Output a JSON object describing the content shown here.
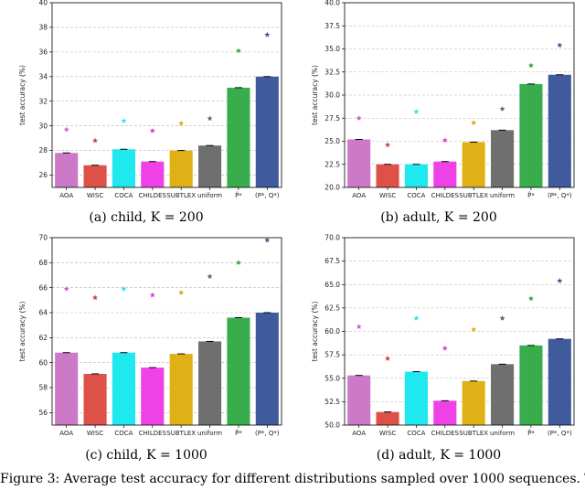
{
  "categories": [
    "AOA",
    "WISC",
    "COCA",
    "CHILDES",
    "SUBTLEX",
    "uniform",
    "P̂*",
    "(P*, Q*)"
  ],
  "colors": {
    "bars": [
      "#cc79c7",
      "#dd5149",
      "#1fe8ef",
      "#ef42e6",
      "#dfb117",
      "#6f6f6f",
      "#39ad4b",
      "#3f5b9c"
    ],
    "stars": [
      "#c761c4",
      "#cf3d3d",
      "#2ee4ef",
      "#dc36dc",
      "#d8ab16",
      "#666666",
      "#2ea844",
      "#3e5797"
    ]
  },
  "figure_caption": "Figure 3: Average test accuracy for different distributions sampled over 1000 sequences. The error",
  "chart_data": [
    {
      "type": "bar",
      "caption": "(a) child, K = 200",
      "ylabel": "test accuracy (%)",
      "ylim": [
        25,
        40
      ],
      "yticks": [
        "26",
        "28",
        "30",
        "32",
        "34",
        "36",
        "38",
        "40"
      ],
      "ytick_values": [
        26,
        28,
        30,
        32,
        34,
        36,
        38,
        40
      ],
      "grid": true,
      "categories": [
        "AOA",
        "WISC",
        "COCA",
        "CHILDES",
        "SUBTLEX",
        "uniform",
        "P̂*",
        "(P*, Q*)"
      ],
      "series": [
        {
          "values": [
            27.8,
            26.8,
            28.1,
            27.1,
            28.0,
            28.4,
            33.1,
            34.0
          ]
        },
        {
          "values": [
            29.7,
            28.8,
            30.4,
            29.6,
            30.2,
            30.6,
            36.1,
            37.4
          ]
        }
      ]
    },
    {
      "type": "bar",
      "caption": "(b) adult, K = 200",
      "ylabel": "test accuracy (%)",
      "ylim": [
        20,
        40
      ],
      "yticks": [
        "20.0",
        "22.5",
        "25.0",
        "27.5",
        "30.0",
        "32.5",
        "35.0",
        "37.5",
        "40.0"
      ],
      "ytick_values": [
        20.0,
        22.5,
        25.0,
        27.5,
        30.0,
        32.5,
        35.0,
        37.5,
        40.0
      ],
      "grid": true,
      "categories": [
        "AOA",
        "WISC",
        "COCA",
        "CHILDES",
        "SUBTLEX",
        "uniform",
        "P̂*",
        "(P*, Q*)"
      ],
      "series": [
        {
          "values": [
            25.2,
            22.5,
            22.5,
            22.8,
            24.9,
            26.2,
            31.2,
            32.2
          ]
        },
        {
          "values": [
            27.5,
            24.6,
            28.2,
            25.1,
            27.0,
            28.5,
            33.2,
            35.4
          ]
        }
      ]
    },
    {
      "type": "bar",
      "caption": "(c) child, K = 1000",
      "ylabel": "test accuracy (%)",
      "ylim": [
        55,
        70
      ],
      "yticks": [
        "56",
        "58",
        "60",
        "62",
        "64",
        "66",
        "68",
        "70"
      ],
      "ytick_values": [
        56,
        58,
        60,
        62,
        64,
        66,
        68,
        70
      ],
      "grid": true,
      "categories": [
        "AOA",
        "WISC",
        "COCA",
        "CHILDES",
        "SUBTLEX",
        "uniform",
        "P̂*",
        "(P*, Q*)"
      ],
      "series": [
        {
          "values": [
            60.8,
            59.1,
            60.8,
            59.6,
            60.7,
            61.7,
            63.6,
            64.0
          ]
        },
        {
          "values": [
            65.9,
            65.2,
            65.9,
            65.4,
            65.6,
            66.9,
            68.0,
            69.8
          ]
        }
      ]
    },
    {
      "type": "bar",
      "caption": "(d) adult, K = 1000",
      "ylabel": "test accuracy (%)",
      "ylim": [
        50,
        70
      ],
      "yticks": [
        "50.0",
        "52.5",
        "55.0",
        "57.5",
        "60.0",
        "62.5",
        "65.0",
        "67.5",
        "70.0"
      ],
      "ytick_values": [
        50.0,
        52.5,
        55.0,
        57.5,
        60.0,
        62.5,
        65.0,
        67.5,
        70.0
      ],
      "grid": true,
      "categories": [
        "AOA",
        "WISC",
        "COCA",
        "CHILDES",
        "SUBTLEX",
        "uniform",
        "P̂*",
        "(P*, Q*)"
      ],
      "series": [
        {
          "values": [
            55.3,
            51.4,
            55.7,
            52.6,
            54.7,
            56.5,
            58.5,
            59.2
          ]
        },
        {
          "values": [
            60.5,
            57.1,
            61.4,
            58.2,
            60.2,
            61.4,
            63.5,
            65.4
          ]
        }
      ]
    }
  ]
}
